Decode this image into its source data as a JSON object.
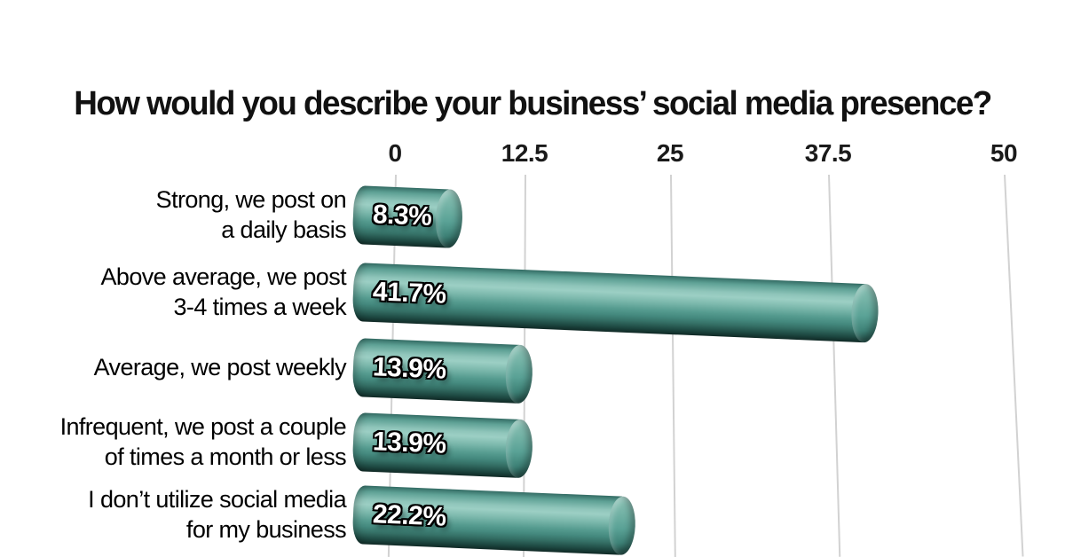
{
  "chart_data": {
    "type": "bar",
    "orientation": "horizontal",
    "style": "3d-cylinder",
    "title": "How would you describe your business’ social media presence?",
    "xlabel": "",
    "ylabel": "",
    "xlim": [
      0,
      50
    ],
    "x_axis": {
      "position": "top",
      "grid": true,
      "ticks": [
        "0",
        "12.5",
        "25",
        "37.5",
        "50"
      ],
      "tick_values": [
        0,
        12.5,
        25,
        37.5,
        50
      ]
    },
    "legend": null,
    "categories": [
      {
        "lines": [
          "Strong, we post on",
          "a daily basis"
        ]
      },
      {
        "lines": [
          "Above average, we post",
          "3-4 times a week"
        ]
      },
      {
        "lines": [
          "Average, we post weekly"
        ]
      },
      {
        "lines": [
          "Infrequent, we post a couple",
          "of times a month or less"
        ]
      },
      {
        "lines": [
          "I don’t utilize social media",
          "for my business"
        ]
      }
    ],
    "values": [
      8.3,
      41.7,
      13.9,
      13.9,
      22.2
    ],
    "value_labels": [
      "8.3%",
      "41.7%",
      "13.9%",
      "13.9%",
      "22.2%"
    ],
    "colors": {
      "bar_mid": "#4f9a8f",
      "bar_highlight": "#9ccfc4",
      "bar_dark_edge": "#112b27",
      "cap_light": "#8ec4b8",
      "gridline": "#d2d2d2",
      "text": "#111111",
      "value_text": "#ffffff",
      "background": "#ffffff"
    }
  }
}
